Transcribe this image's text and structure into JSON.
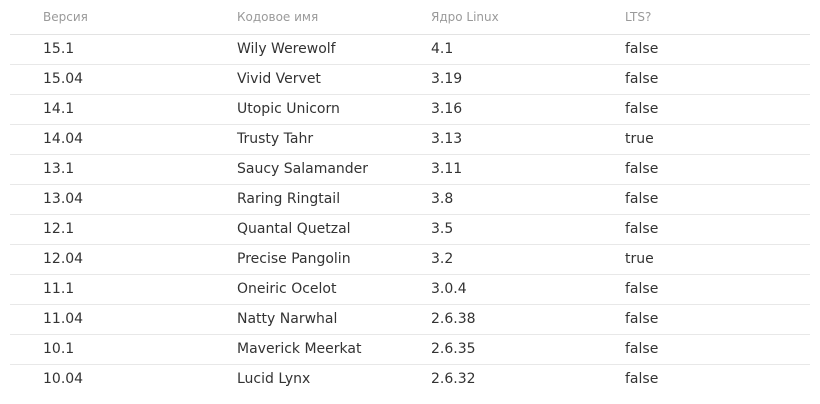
{
  "table": {
    "headers": [
      "Версия",
      "Кодовое имя",
      "Ядро Linux",
      "LTS?"
    ],
    "rows": [
      [
        "15.1",
        "Wily Werewolf",
        "4.1",
        "false"
      ],
      [
        "15.04",
        "Vivid Vervet",
        "3.19",
        "false"
      ],
      [
        "14.1",
        "Utopic Unicorn",
        "3.16",
        "false"
      ],
      [
        "14.04",
        "Trusty Tahr",
        "3.13",
        "true"
      ],
      [
        "13.1",
        "Saucy Salamander",
        "3.11",
        "false"
      ],
      [
        "13.04",
        "Raring Ringtail",
        "3.8",
        "false"
      ],
      [
        "12.1",
        "Quantal Quetzal",
        "3.5",
        "false"
      ],
      [
        "12.04",
        "Precise Pangolin",
        "3.2",
        "true"
      ],
      [
        "11.1",
        "Oneiric Ocelot",
        "3.0.4",
        "false"
      ],
      [
        "11.04",
        "Natty Narwhal",
        "2.6.38",
        "false"
      ],
      [
        "10.1",
        "Maverick Meerkat",
        "2.6.35",
        "false"
      ],
      [
        "10.04",
        "Lucid Lynx",
        "2.6.32",
        "false"
      ]
    ]
  }
}
